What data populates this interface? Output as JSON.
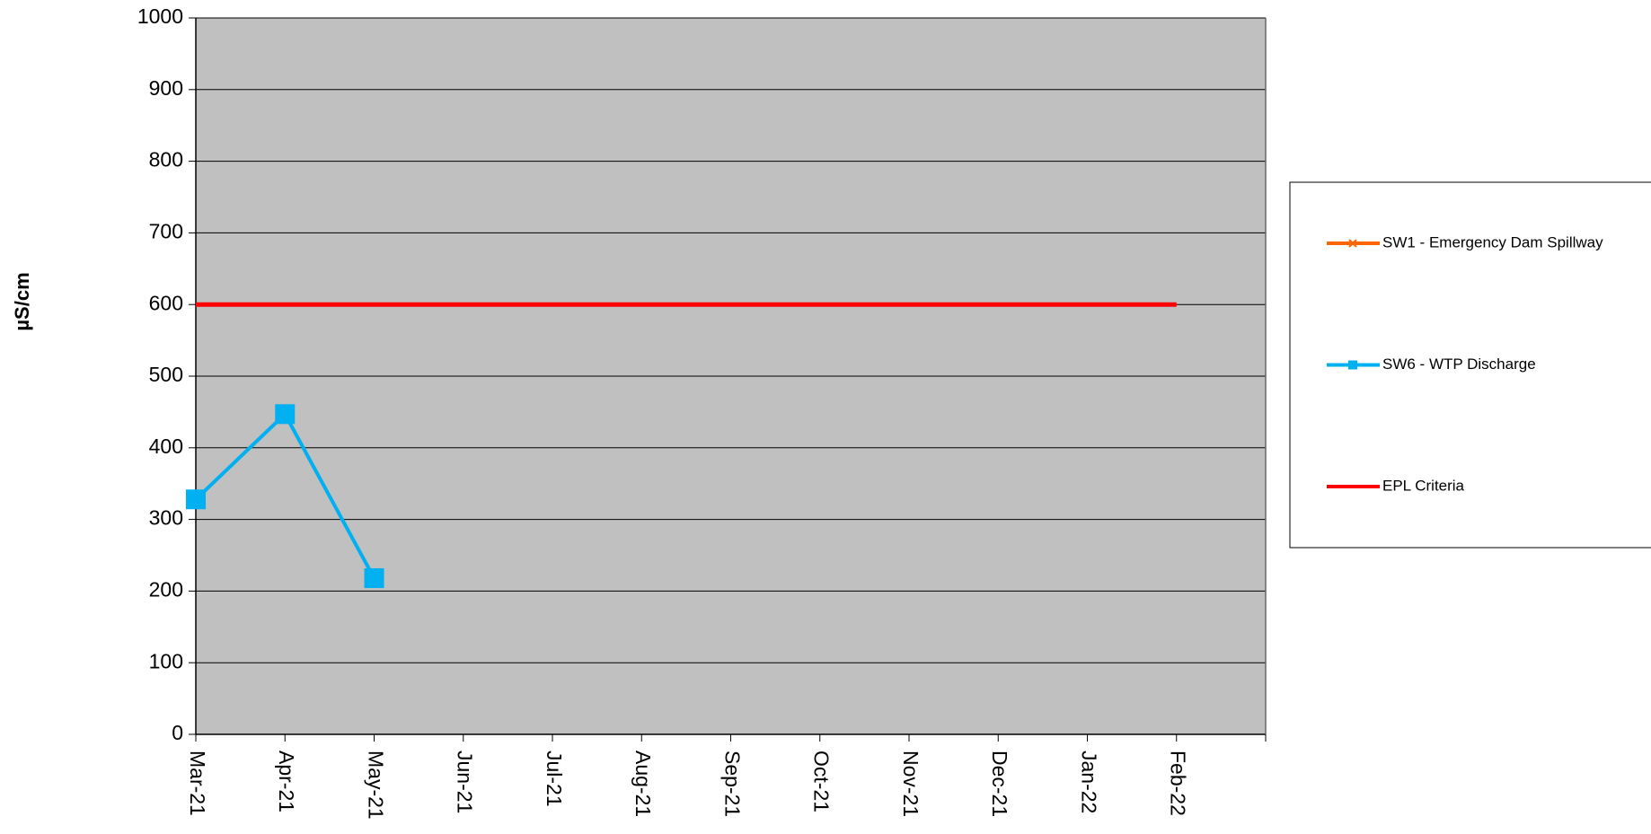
{
  "chart_data": {
    "type": "line",
    "y_label": "µS/cm",
    "categories": [
      "Mar-21",
      "Apr-21",
      "May-21",
      "Jun-21",
      "Jul-21",
      "Aug-21",
      "Sep-21",
      "Oct-21",
      "Nov-21",
      "Dec-21",
      "Jan-22",
      "Feb-22"
    ],
    "series": [
      {
        "name": "SW1 - Emergency Dam Spillway",
        "color": "#ff6600",
        "marker": "x",
        "values": [
          null,
          null,
          null,
          null,
          null,
          null,
          null,
          null,
          null,
          null,
          null,
          null
        ]
      },
      {
        "name": "SW6 - WTP Discharge",
        "color": "#00b0f0",
        "marker": "square",
        "values": [
          328,
          447,
          218,
          null,
          null,
          null,
          null,
          null,
          null,
          null,
          null,
          null
        ]
      },
      {
        "name": "EPL Criteria",
        "color": "#ff0000",
        "marker": "none",
        "values": [
          600,
          600,
          600,
          600,
          600,
          600,
          600,
          600,
          600,
          600,
          600,
          600
        ]
      }
    ],
    "ylim": [
      0,
      1000
    ],
    "yticks": [
      0,
      100,
      200,
      300,
      400,
      500,
      600,
      700,
      800,
      900,
      1000
    ],
    "grid": true,
    "legend": "right"
  }
}
